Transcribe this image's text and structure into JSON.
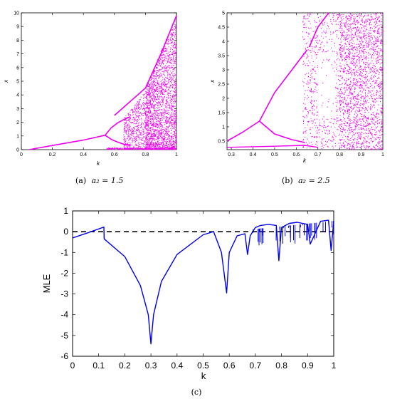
{
  "captions": {
    "a_prefix": "(a)",
    "a_math": "a₂ = 1.5",
    "b_prefix": "(b)",
    "b_math": "a₂ = 2.5",
    "c": "(c)"
  },
  "colors": {
    "bifurcation": "#ee00ee",
    "mle": "#0000ee",
    "zero_line": "#000000"
  },
  "chart_data": [
    {
      "type": "scatter",
      "xlabel": "k",
      "ylabel": "x",
      "xlim": [
        0,
        1
      ],
      "ylim": [
        0,
        10
      ],
      "xticks": [
        "0",
        "0.2",
        "0.4",
        "0.6",
        "0.8",
        "1"
      ],
      "yticks": [
        "0",
        "1",
        "2",
        "3",
        "4",
        "5",
        "6",
        "7",
        "8",
        "9",
        "10"
      ],
      "grid": false,
      "param_a2": 1.5,
      "branches": [
        {
          "x": [
            0.05,
            0.2,
            0.4,
            0.54
          ],
          "y": [
            0.0,
            0.3,
            0.7,
            1.05
          ]
        },
        {
          "x": [
            0.54,
            0.58,
            0.62,
            0.66,
            0.7
          ],
          "y": [
            1.05,
            1.6,
            1.95,
            2.2,
            2.4
          ]
        },
        {
          "x": [
            0.54,
            0.58,
            0.62,
            0.66,
            0.7
          ],
          "y": [
            1.05,
            0.75,
            0.55,
            0.4,
            0.3
          ]
        },
        {
          "x": [
            0.6,
            0.8,
            0.9,
            1.0
          ],
          "y": [
            2.5,
            4.5,
            7.0,
            9.8
          ]
        }
      ],
      "chaotic_region": [
        0.7,
        1.0
      ]
    },
    {
      "type": "scatter",
      "xlabel": "k",
      "ylabel": "x",
      "xlim": [
        0.28,
        1
      ],
      "ylim": [
        0.2,
        5
      ],
      "xticks": [
        "0.3",
        "0.4",
        "0.5",
        "0.6",
        "0.7",
        "0.8",
        "0.9",
        "1"
      ],
      "yticks": [
        "0.5",
        "1",
        "1.5",
        "2",
        "2.5",
        "3",
        "3.5",
        "4",
        "4.5",
        "5"
      ],
      "grid": false,
      "param_a2": 2.5,
      "branches": [
        {
          "x": [
            0.28,
            0.35,
            0.43
          ],
          "y": [
            0.5,
            0.8,
            1.2
          ]
        },
        {
          "x": [
            0.43,
            0.5,
            0.58,
            0.65
          ],
          "y": [
            1.2,
            2.2,
            3.0,
            3.7
          ]
        },
        {
          "x": [
            0.43,
            0.5,
            0.58,
            0.64
          ],
          "y": [
            1.2,
            0.75,
            0.55,
            0.45
          ]
        },
        {
          "x": [
            0.66,
            0.7,
            0.75
          ],
          "y": [
            3.8,
            4.5,
            5.0
          ]
        }
      ],
      "chaotic_region": [
        0.8,
        1.0
      ]
    },
    {
      "type": "line",
      "xlabel": "k",
      "ylabel": "MLE",
      "xlim": [
        0,
        1
      ],
      "ylim": [
        -6,
        1
      ],
      "xticks": [
        "0",
        "0.1",
        "0.2",
        "0.3",
        "0.4",
        "0.5",
        "0.6",
        "0.7",
        "0.8",
        "0.9",
        "1"
      ],
      "yticks": [
        "1",
        "0",
        "-1",
        "-2",
        "-3",
        "-4",
        "-5",
        "-6"
      ],
      "grid": false,
      "zero_line": {
        "y": 0,
        "style": "dashed"
      },
      "series": [
        {
          "x": [
            0.0,
            0.06,
            0.12,
            0.121,
            0.2,
            0.26,
            0.29,
            0.3,
            0.31,
            0.34,
            0.4,
            0.5,
            0.54,
            0.57,
            0.59,
            0.6,
            0.63,
            0.66,
            0.67,
            0.68,
            0.7,
            0.72,
            0.75,
            0.78,
            0.79,
            0.8,
            0.83,
            0.86,
            0.9,
            0.91,
            0.95,
            0.98,
            0.99,
            1.0
          ],
          "y": [
            -0.3,
            -0.05,
            0.22,
            -0.35,
            -1.2,
            -2.6,
            -4.0,
            -5.4,
            -4.0,
            -2.4,
            -1.1,
            -0.15,
            0.0,
            -1.0,
            -2.95,
            -1.0,
            -0.2,
            -0.1,
            -1.1,
            -0.2,
            0.2,
            0.3,
            0.35,
            0.3,
            -1.4,
            0.2,
            0.4,
            0.45,
            0.35,
            -0.6,
            0.5,
            0.55,
            -0.9,
            0.5
          ]
        }
      ]
    }
  ]
}
